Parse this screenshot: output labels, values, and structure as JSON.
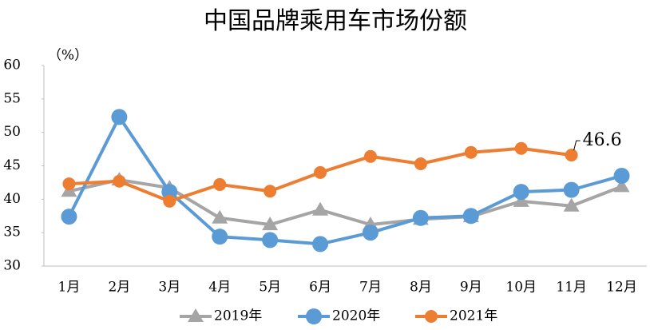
{
  "chart_data": {
    "type": "line",
    "title": "中国品牌乘用车市场份额",
    "y_label": "（%）",
    "categories": [
      "1月",
      "2月",
      "3月",
      "4月",
      "5月",
      "6月",
      "7月",
      "8月",
      "9月",
      "10月",
      "11月",
      "12月"
    ],
    "series": [
      {
        "name": "2019年",
        "color": "#a5a5a5",
        "marker": "triangle",
        "values": [
          41.2,
          42.9,
          41.7,
          37.2,
          36.2,
          38.4,
          36.2,
          37.0,
          37.4,
          39.7,
          39.0,
          41.9
        ]
      },
      {
        "name": "2020年",
        "color": "#5b9bd5",
        "marker": "circle",
        "values": [
          37.4,
          52.3,
          41.1,
          34.4,
          33.9,
          33.3,
          35.0,
          37.2,
          37.5,
          41.1,
          41.4,
          43.5
        ]
      },
      {
        "name": "2021年",
        "color": "#ed7d31",
        "marker": "circle",
        "values": [
          42.3,
          42.7,
          39.7,
          42.2,
          41.2,
          44.0,
          46.4,
          45.3,
          47.0,
          47.6,
          46.6,
          null
        ]
      }
    ],
    "annotation_point": {
      "series": 2,
      "index": 10
    },
    "ylim": [
      30,
      60
    ],
    "yticks": [
      30,
      35,
      40,
      45,
      50,
      55,
      60
    ],
    "grid": false,
    "legend": "bottom"
  }
}
